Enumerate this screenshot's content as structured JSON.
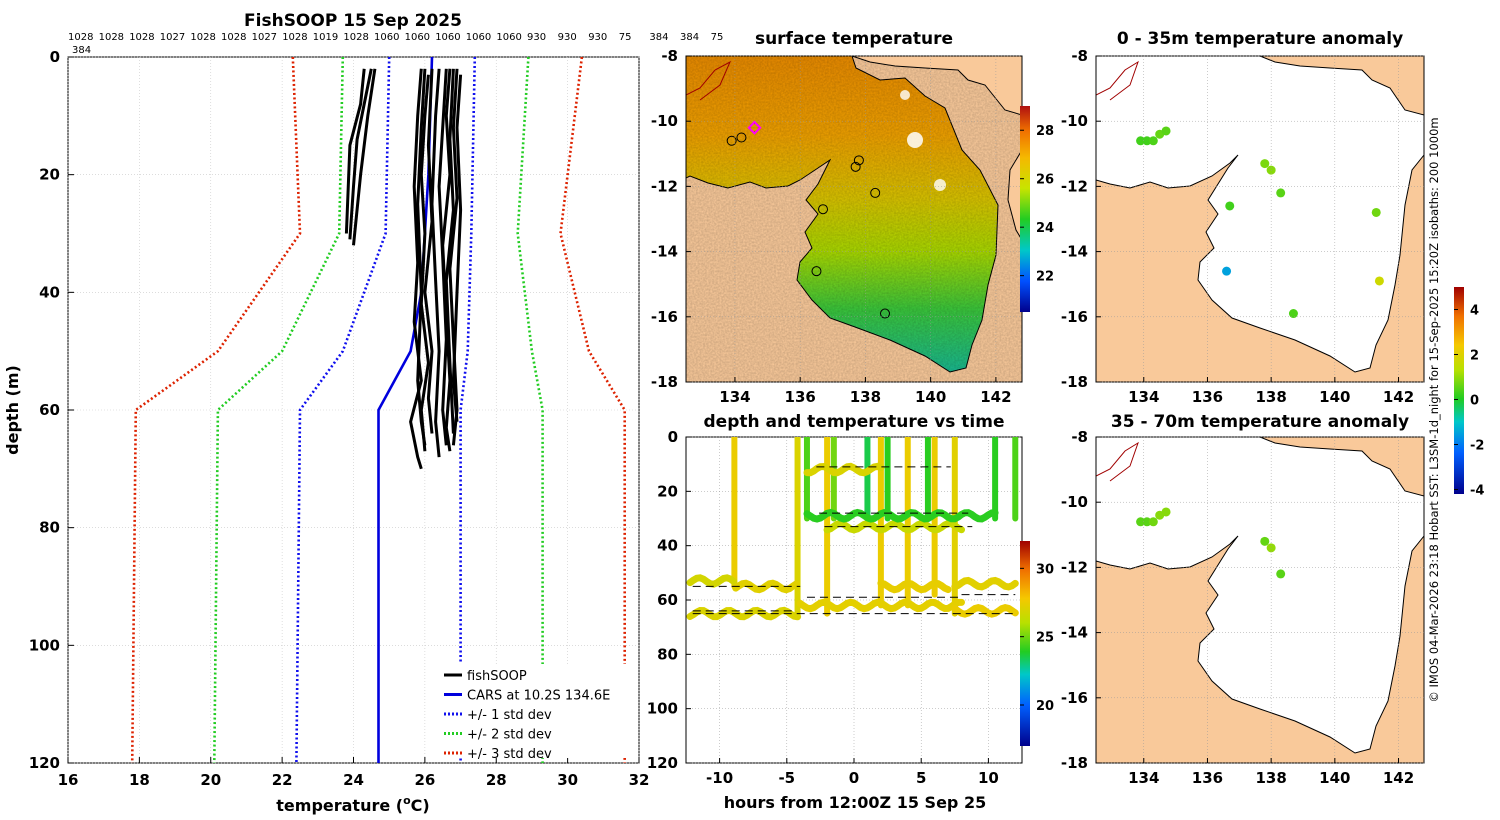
{
  "figure": {
    "credit": "© IMOS 04-Mar-2026 23:18 Hobart SST: L3SM-1d_night for 15-Sep-2025 15:20Z isobaths: 200  1000m"
  },
  "colors": {
    "fishsoop": "#000000",
    "cars": "#0000dd",
    "std1": "#1010ee",
    "std2": "#22cc22",
    "std3": "#dd2200",
    "land": "#f9c99a",
    "grid": "#c8c8c8"
  },
  "chart_data": [
    {
      "id": "profile",
      "type": "line",
      "title": "FishSOOP 15 Sep 2025",
      "xlabel": "temperature (°C)",
      "xlabel_main": "temperature (",
      "xlabel_sup": "o",
      "xlabel_end": "C)",
      "ylabel": "depth (m)",
      "xlim": [
        16,
        32
      ],
      "ylim": [
        0,
        120
      ],
      "y_reversed": true,
      "xticks": [
        16,
        18,
        20,
        22,
        24,
        26,
        28,
        30,
        32
      ],
      "yticks": [
        0,
        20,
        40,
        60,
        80,
        100,
        120
      ],
      "grid": true,
      "top_labels": [
        "1028",
        "1028",
        "1028",
        "1027",
        "1028",
        "1028",
        "1027",
        "1028",
        "1019",
        "1028",
        "1060",
        "1060",
        "1060",
        "1060",
        "1060",
        "930",
        "930",
        "930",
        "75",
        "384",
        "384",
        "75"
      ],
      "top_labels_line2": [
        "384"
      ],
      "legend": {
        "position": "bottom-right",
        "entries": [
          {
            "label": "fishSOOP",
            "color": "#000000",
            "style": "solid"
          },
          {
            "label": "CARS at 10.2S 134.6E",
            "color": "#0000dd",
            "style": "solid"
          },
          {
            "label": "+/- 1 std dev",
            "color": "#1010ee",
            "style": "dotted"
          },
          {
            "label": "+/- 2 std dev",
            "color": "#22cc22",
            "style": "dotted"
          },
          {
            "label": "+/- 3 std dev",
            "color": "#dd2200",
            "style": "dotted"
          }
        ]
      },
      "series": [
        {
          "name": "CARS at 10.2S 134.6E",
          "depth": [
            0,
            20,
            40,
            50,
            60,
            120
          ],
          "temp": [
            26.2,
            26.1,
            25.9,
            25.6,
            24.7,
            24.7
          ]
        },
        {
          "name": "-1 std",
          "depth": [
            0,
            30,
            50,
            60,
            120
          ],
          "temp": [
            25.0,
            24.9,
            23.7,
            22.5,
            22.4
          ]
        },
        {
          "name": "+1 std",
          "depth": [
            0,
            30,
            50,
            60,
            120
          ],
          "temp": [
            27.4,
            27.3,
            27.2,
            27.0,
            27.0
          ]
        },
        {
          "name": "-2 std",
          "depth": [
            0,
            30,
            50,
            60,
            120
          ],
          "temp": [
            23.7,
            23.6,
            22.0,
            20.2,
            20.1
          ]
        },
        {
          "name": "+2 std",
          "depth": [
            0,
            30,
            50,
            60,
            120
          ],
          "temp": [
            28.9,
            28.6,
            29.0,
            29.3,
            29.3
          ]
        },
        {
          "name": "-3 std",
          "depth": [
            0,
            30,
            50,
            60,
            120
          ],
          "temp": [
            22.3,
            22.5,
            20.2,
            17.9,
            17.8
          ]
        },
        {
          "name": "+3 std",
          "depth": [
            0,
            30,
            50,
            60,
            120
          ],
          "temp": [
            30.4,
            29.8,
            30.6,
            31.6,
            31.6
          ]
        }
      ],
      "casts": [
        {
          "depth": [
            2,
            8,
            15,
            30
          ],
          "temp": [
            24.3,
            24.2,
            23.9,
            23.8
          ]
        },
        {
          "depth": [
            2,
            8,
            14,
            22,
            31
          ],
          "temp": [
            24.5,
            24.3,
            24.1,
            24.0,
            23.9
          ]
        },
        {
          "depth": [
            2,
            10,
            20,
            32
          ],
          "temp": [
            24.6,
            24.4,
            24.2,
            24.0
          ]
        },
        {
          "depth": [
            2,
            10,
            22,
            35,
            45,
            55,
            62,
            68,
            70
          ],
          "temp": [
            25.9,
            25.8,
            25.7,
            25.8,
            25.7,
            25.9,
            25.6,
            25.8,
            25.9
          ]
        },
        {
          "depth": [
            2,
            12,
            25,
            40,
            55,
            62,
            66
          ],
          "temp": [
            26.0,
            25.9,
            25.8,
            25.9,
            25.8,
            25.9,
            26.0
          ]
        },
        {
          "depth": [
            3,
            10,
            20,
            30,
            42,
            52,
            60,
            67
          ],
          "temp": [
            26.1,
            26.0,
            25.9,
            26.0,
            25.9,
            26.1,
            25.9,
            26.0
          ]
        },
        {
          "depth": [
            2,
            15,
            28,
            40,
            50,
            58,
            64
          ],
          "temp": [
            26.2,
            26.1,
            26.2,
            26.0,
            26.2,
            26.1,
            26.2
          ]
        },
        {
          "depth": [
            2,
            10,
            25,
            38,
            50,
            62,
            68
          ],
          "temp": [
            26.4,
            26.3,
            26.2,
            26.3,
            26.4,
            26.3,
            26.4
          ]
        },
        {
          "depth": [
            2,
            12,
            22,
            34,
            48,
            60,
            66
          ],
          "temp": [
            26.6,
            26.5,
            26.4,
            26.5,
            26.6,
            26.5,
            26.6
          ]
        },
        {
          "depth": [
            2,
            10,
            20,
            32,
            44,
            55,
            63,
            67
          ],
          "temp": [
            26.7,
            26.6,
            26.7,
            26.5,
            26.6,
            26.7,
            26.6,
            26.7
          ]
        },
        {
          "depth": [
            2,
            14,
            26,
            38,
            52,
            64
          ],
          "temp": [
            26.8,
            26.7,
            26.8,
            26.6,
            26.7,
            26.8
          ]
        },
        {
          "depth": [
            2,
            12,
            24,
            36,
            48,
            60,
            66
          ],
          "temp": [
            26.9,
            26.8,
            26.9,
            26.7,
            26.8,
            26.9,
            26.8
          ]
        },
        {
          "depth": [
            3,
            12,
            26,
            40,
            55,
            62
          ],
          "temp": [
            27.0,
            26.9,
            27.0,
            26.9,
            26.8,
            26.9
          ]
        }
      ]
    },
    {
      "id": "sst",
      "type": "heatmap",
      "title": "surface temperature",
      "xlim": [
        132.5,
        142.8
      ],
      "ylim": [
        -18,
        -8
      ],
      "xticks": [
        134,
        136,
        138,
        140,
        142
      ],
      "yticks": [
        -8,
        -10,
        -12,
        -14,
        -16,
        -18
      ],
      "colorbar": {
        "range": [
          20.5,
          29
        ],
        "ticks": [
          22,
          24,
          26,
          28
        ]
      },
      "casts": [
        {
          "lon": 133.9,
          "lat": -10.6
        },
        {
          "lon": 134.2,
          "lat": -10.5
        },
        {
          "lon": 134.6,
          "lat": -10.2
        },
        {
          "lon": 137.8,
          "lat": -11.2
        },
        {
          "lon": 137.7,
          "lat": -11.4
        },
        {
          "lon": 138.3,
          "lat": -12.2
        },
        {
          "lon": 136.7,
          "lat": -12.7
        },
        {
          "lon": 136.5,
          "lat": -14.6
        },
        {
          "lon": 138.6,
          "lat": -15.9
        }
      ],
      "highlight": {
        "lon": 134.6,
        "lat": -10.2
      }
    },
    {
      "id": "timeseries",
      "type": "scatter",
      "title": "depth and temperature vs time",
      "xlabel": "hours from 12:00Z 15 Sep 25",
      "xlim": [
        -12.5,
        12.5
      ],
      "ylim": [
        0,
        120
      ],
      "y_reversed": true,
      "xticks": [
        -10,
        -5,
        0,
        5,
        10
      ],
      "yticks": [
        0,
        20,
        40,
        60,
        80,
        100,
        120
      ],
      "colorbar": {
        "range": [
          17,
          32
        ],
        "ticks": [
          20,
          25,
          30
        ]
      },
      "segments": [
        {
          "t0": -12.2,
          "t1": -8.9,
          "depth": 53,
          "temp": 26.8
        },
        {
          "t0": -8.8,
          "t1": -4.2,
          "depth": 55,
          "temp": 27.2
        },
        {
          "t0": -12.2,
          "t1": -4.0,
          "depth": 65,
          "temp": 27.0
        },
        {
          "t0": -4.0,
          "t1": 8.0,
          "depth": 62,
          "temp": 27.3
        },
        {
          "t0": -3.5,
          "t1": 2.0,
          "depth": 12,
          "temp": 27.0
        },
        {
          "t0": -2.0,
          "t1": 8.0,
          "depth": 33,
          "temp": 26.5
        },
        {
          "t0": -3.5,
          "t1": 10.5,
          "depth": 29,
          "temp": 24.0
        },
        {
          "t0": 2.0,
          "t1": 7.0,
          "depth": 55,
          "temp": 27.4
        },
        {
          "t0": 7.5,
          "t1": 12.2,
          "depth": 54,
          "temp": 27.2
        },
        {
          "t0": 7.5,
          "t1": 12.2,
          "depth": 64,
          "temp": 27.5
        }
      ],
      "profiles": [
        {
          "t": -8.9,
          "depth_max": 55,
          "temp": 27.5
        },
        {
          "t": -4.2,
          "depth_max": 66,
          "temp": 27.0
        },
        {
          "t": -3.5,
          "depth_max": 30,
          "temp": 24.5
        },
        {
          "t": -2.0,
          "depth_max": 65,
          "temp": 27.5
        },
        {
          "t": -1.5,
          "depth_max": 30,
          "temp": 25.0
        },
        {
          "t": 1.0,
          "depth_max": 30,
          "temp": 23.5
        },
        {
          "t": 2.0,
          "depth_max": 62,
          "temp": 27.5
        },
        {
          "t": 2.5,
          "depth_max": 30,
          "temp": 24.0
        },
        {
          "t": 4.0,
          "depth_max": 62,
          "temp": 27.5
        },
        {
          "t": 5.5,
          "depth_max": 30,
          "temp": 24.0
        },
        {
          "t": 6.0,
          "depth_max": 58,
          "temp": 27.5
        },
        {
          "t": 7.5,
          "depth_max": 65,
          "temp": 27.2
        },
        {
          "t": 10.5,
          "depth_max": 30,
          "temp": 24.0
        },
        {
          "t": 12.0,
          "depth_max": 30,
          "temp": 24.5
        }
      ],
      "dashes": [
        {
          "t0": -2.8,
          "t1": 7.2,
          "depth": 11
        },
        {
          "t0": -2.6,
          "t1": 8.5,
          "depth": 28
        },
        {
          "t0": -2.2,
          "t1": 8.8,
          "depth": 33
        },
        {
          "t0": -12.0,
          "t1": -4.0,
          "depth": 55
        },
        {
          "t0": -12.0,
          "t1": -4.5,
          "depth": 64
        },
        {
          "t0": -3.5,
          "t1": 8.0,
          "depth": 59
        },
        {
          "t0": 8.0,
          "t1": 12.0,
          "depth": 58
        },
        {
          "t0": -12.0,
          "t1": 12.0,
          "depth": 65
        }
      ]
    },
    {
      "id": "anom1",
      "type": "scatter",
      "title": "0 - 35m temperature anomaly",
      "xlim": [
        132.5,
        142.8
      ],
      "ylim": [
        -18,
        -8
      ],
      "xticks": [
        134,
        136,
        138,
        140,
        142
      ],
      "yticks": [
        -8,
        -10,
        -12,
        -14,
        -16,
        -18
      ],
      "colorbar": {
        "range": [
          -4.2,
          5
        ],
        "ticks": [
          -4,
          -2,
          0,
          2,
          4
        ]
      },
      "points": [
        {
          "lon": 133.9,
          "lat": -10.6,
          "v": 0.3
        },
        {
          "lon": 134.1,
          "lat": -10.6,
          "v": 0.3
        },
        {
          "lon": 134.3,
          "lat": -10.6,
          "v": 0.4
        },
        {
          "lon": 134.5,
          "lat": -10.4,
          "v": 0.6
        },
        {
          "lon": 134.7,
          "lat": -10.3,
          "v": 0.5
        },
        {
          "lon": 137.8,
          "lat": -11.3,
          "v": 0.8
        },
        {
          "lon": 138.0,
          "lat": -11.5,
          "v": 0.9
        },
        {
          "lon": 138.3,
          "lat": -12.2,
          "v": 0.5
        },
        {
          "lon": 136.7,
          "lat": -12.6,
          "v": 0.3
        },
        {
          "lon": 136.6,
          "lat": -14.6,
          "v": -1.5
        },
        {
          "lon": 141.3,
          "lat": -12.8,
          "v": 0.7
        },
        {
          "lon": 141.4,
          "lat": -14.9,
          "v": 1.7
        },
        {
          "lon": 138.7,
          "lat": -15.9,
          "v": 0.4
        }
      ]
    },
    {
      "id": "anom2",
      "type": "scatter",
      "title": "35 - 70m temperature anomaly",
      "xlim": [
        132.5,
        142.8
      ],
      "ylim": [
        -18,
        -8
      ],
      "xticks": [
        134,
        136,
        138,
        140,
        142
      ],
      "yticks": [
        -8,
        -10,
        -12,
        -14,
        -16,
        -18
      ],
      "points": [
        {
          "lon": 133.9,
          "lat": -10.6,
          "v": 0.5
        },
        {
          "lon": 134.1,
          "lat": -10.6,
          "v": 0.5
        },
        {
          "lon": 134.3,
          "lat": -10.6,
          "v": 0.7
        },
        {
          "lon": 134.5,
          "lat": -10.4,
          "v": 0.9
        },
        {
          "lon": 134.7,
          "lat": -10.3,
          "v": 0.9
        },
        {
          "lon": 137.8,
          "lat": -11.2,
          "v": 0.6
        },
        {
          "lon": 138.0,
          "lat": -11.4,
          "v": 1.0
        },
        {
          "lon": 138.3,
          "lat": -12.2,
          "v": 0.5
        }
      ]
    }
  ]
}
